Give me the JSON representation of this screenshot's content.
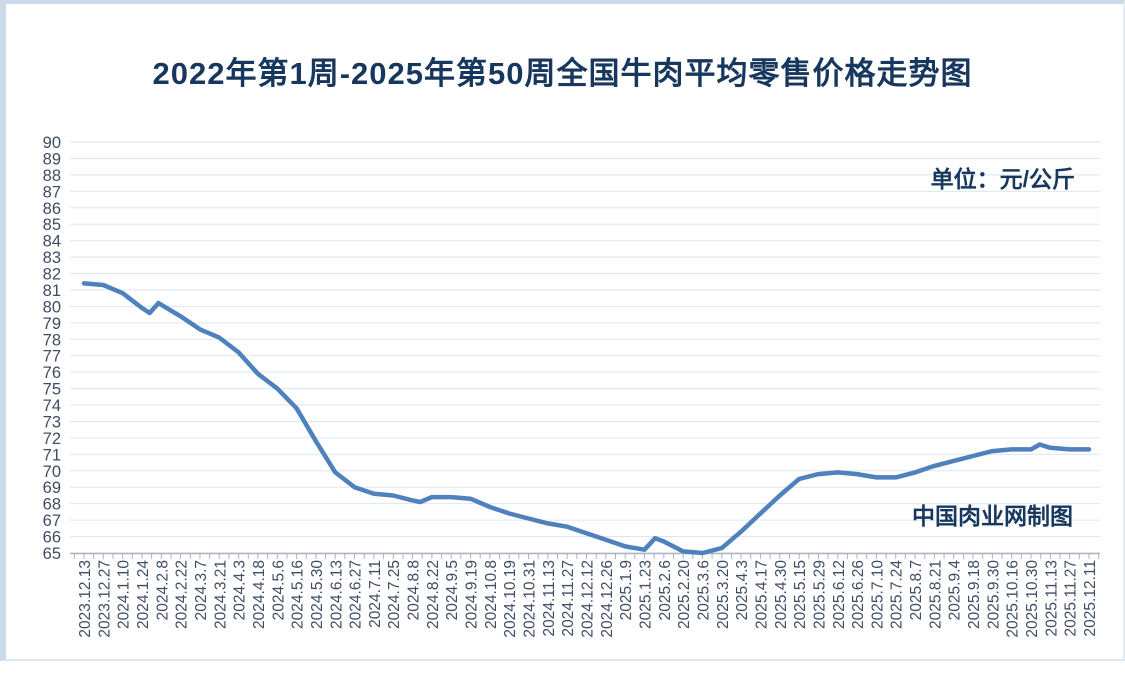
{
  "colors": {
    "title": "#17375e",
    "line": "#4f81bd",
    "gridline": "#dde6f0",
    "axis": "#a9b6c2",
    "tick_label": "#3f4d63",
    "frame_border": "#ccd9e8"
  },
  "chart_data": {
    "type": "line",
    "title": "2022年第1周-2025年第50周全国牛肉平均零售价格走势图",
    "unit_label": "单位：元/公斤",
    "watermark": "中国肉业网制图",
    "xlabel": "",
    "ylabel": "",
    "ylim": [
      65,
      90
    ],
    "ytick_step": 1,
    "grid": true,
    "legend": "none",
    "categories": [
      "2023.12.13",
      "2023.12.27",
      "2024.1.10",
      "2024.1.24",
      "2024.2.8",
      "2024.2.22",
      "2024.3.7",
      "2024.3.21",
      "2024.4.3",
      "2024.4.18",
      "2024.5.6",
      "2024.5.16",
      "2024.5.30",
      "2024.6.13",
      "2024.6.27",
      "2024.7.11",
      "2024.7.25",
      "2024.8.8",
      "2024.8.22",
      "2024.9.5",
      "2024.9.19",
      "2024.10.8",
      "2024.10.19",
      "2024.10.31",
      "2024.11.13",
      "2024.11.27",
      "2024.12.12",
      "2024.12.26",
      "2025.1.9",
      "2025.1.23",
      "2025.2.6",
      "2025.2.20",
      "2025.3.6",
      "2025.3.20",
      "2025.4.3",
      "2025.4.17",
      "2025.4.30",
      "2025.5.15",
      "2025.5.29",
      "2025.6.12",
      "2025.6.26",
      "2025.7.10",
      "2025.7.24",
      "2025.8.7",
      "2025.8.21",
      "2025.9.4",
      "2025.9.18",
      "2025.9.30",
      "2025.10.16",
      "2025.10.30",
      "2025.11.13",
      "2025.11.27",
      "2025.12.11"
    ],
    "series": [
      {
        "name": "全国牛肉平均零售价格",
        "color": "#4f81bd",
        "values": [
          81.4,
          81.3,
          80.8,
          79.9,
          80.1,
          79.4,
          78.6,
          78.1,
          77.2,
          75.9,
          75.0,
          73.8,
          71.8,
          69.9,
          69.0,
          68.6,
          68.5,
          68.2,
          68.4,
          68.4,
          68.3,
          67.8,
          67.4,
          67.1,
          66.8,
          66.6,
          66.2,
          65.8,
          65.4,
          65.2,
          65.7,
          65.1,
          65.0,
          65.3,
          66.3,
          67.4,
          68.5,
          69.5,
          69.8,
          69.9,
          69.8,
          69.6,
          69.6,
          69.9,
          70.3,
          70.6,
          70.9,
          71.2,
          71.3,
          71.3,
          71.4,
          71.3,
          71.3
        ]
      }
    ],
    "intermediate_points": [
      {
        "index": 3.4,
        "value": 79.6
      },
      {
        "index": 3.85,
        "value": 80.2
      },
      {
        "index": 17.4,
        "value": 68.1
      },
      {
        "index": 29.55,
        "value": 65.9
      },
      {
        "index": 49.45,
        "value": 71.6
      }
    ]
  }
}
